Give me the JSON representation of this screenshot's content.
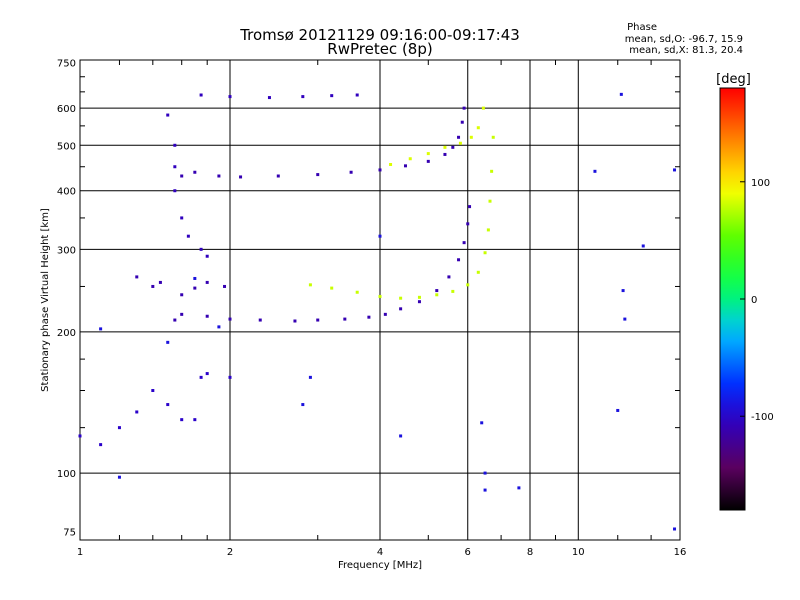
{
  "header": {
    "title": "Tromsø 20121129 09:16:00-09:17:43",
    "subtitle": "RwPretec (8p)",
    "phase_heading": "Phase",
    "phase_line1": "mean, sd,O: -96.7, 15.9",
    "phase_line2": "mean, sd,X: 81.3, 20.4"
  },
  "colorbar": {
    "label": "[deg]",
    "ticks": [
      "100",
      "0",
      "-100"
    ],
    "tick_values": [
      100,
      0,
      -100
    ],
    "range": [
      -180,
      180
    ]
  },
  "chart_data": {
    "type": "scatter",
    "title": "Tromsø 20121129 09:16:00-09:17:43",
    "subtitle": "RwPretec (8p)",
    "xlabel": "Frequency [MHz]",
    "ylabel": "Stationary phase Virtual Height [km]",
    "xscale": "log",
    "yscale": "log",
    "xlim": [
      1,
      16
    ],
    "ylim": [
      72,
      760
    ],
    "xticks": [
      1,
      2,
      4,
      6,
      8,
      10,
      16
    ],
    "xtick_labels": [
      "1",
      "2",
      "4",
      "6",
      "8",
      "10",
      "16"
    ],
    "yticks": [
      75,
      100,
      200,
      300,
      400,
      500,
      600,
      750
    ],
    "ytick_labels": [
      "75",
      "100",
      "200",
      "300",
      "400",
      "500",
      "600",
      "750"
    ],
    "grid": true,
    "color_variable": "phase [deg]",
    "series": [
      {
        "points": [
          [
            1.55,
            212
          ],
          [
            1.6,
            218
          ],
          [
            1.8,
            216
          ],
          [
            2.0,
            213
          ],
          [
            2.3,
            212
          ],
          [
            2.7,
            211
          ],
          [
            3.0,
            212
          ],
          [
            3.4,
            213
          ],
          [
            3.8,
            215
          ],
          [
            4.1,
            218
          ],
          [
            4.4,
            224
          ],
          [
            4.8,
            232
          ],
          [
            5.2,
            245
          ],
          [
            5.5,
            262
          ],
          [
            5.75,
            285
          ],
          [
            5.9,
            310
          ],
          [
            6.0,
            340
          ],
          [
            6.05,
            370
          ]
        ],
        "phase": -110
      },
      {
        "points": [
          [
            2.9,
            252
          ],
          [
            3.2,
            248
          ],
          [
            3.6,
            243
          ],
          [
            4.0,
            238
          ],
          [
            4.4,
            236
          ],
          [
            4.8,
            237
          ],
          [
            5.2,
            240
          ],
          [
            5.6,
            244
          ],
          [
            6.0,
            252
          ],
          [
            6.3,
            268
          ],
          [
            6.5,
            295
          ],
          [
            6.6,
            330
          ],
          [
            6.65,
            380
          ],
          [
            6.7,
            440
          ],
          [
            6.75,
            520
          ]
        ],
        "phase": 80
      },
      {
        "points": [
          [
            1.6,
            430
          ],
          [
            1.7,
            438
          ],
          [
            1.9,
            430
          ],
          [
            2.1,
            428
          ],
          [
            2.5,
            430
          ],
          [
            3.0,
            433
          ],
          [
            3.5,
            438
          ],
          [
            4.0,
            443
          ],
          [
            4.5,
            452
          ],
          [
            5.0,
            462
          ],
          [
            5.4,
            478
          ],
          [
            5.6,
            495
          ],
          [
            5.75,
            520
          ],
          [
            5.85,
            560
          ],
          [
            5.9,
            600
          ]
        ],
        "phase": -110
      },
      {
        "points": [
          [
            4.2,
            455
          ],
          [
            4.6,
            468
          ],
          [
            5.0,
            480
          ],
          [
            5.4,
            495
          ],
          [
            5.8,
            505
          ],
          [
            6.1,
            520
          ],
          [
            6.3,
            545
          ],
          [
            6.45,
            600
          ]
        ],
        "phase": 85
      },
      {
        "points": [
          [
            1.75,
            640
          ],
          [
            2.0,
            635
          ],
          [
            2.4,
            632
          ],
          [
            2.8,
            635
          ],
          [
            3.2,
            638
          ],
          [
            3.6,
            640
          ]
        ],
        "phase": -105
      },
      {
        "points": [
          [
            1.5,
            580
          ],
          [
            1.55,
            500
          ],
          [
            1.55,
            450
          ],
          [
            1.55,
            400
          ],
          [
            1.6,
            350
          ],
          [
            1.65,
            320
          ],
          [
            1.75,
            300
          ],
          [
            1.8,
            290
          ]
        ],
        "phase": -105
      },
      {
        "points": [
          [
            1.0,
            120
          ],
          [
            1.1,
            115
          ],
          [
            1.2,
            125
          ],
          [
            1.3,
            135
          ],
          [
            1.4,
            150
          ],
          [
            1.5,
            140
          ],
          [
            1.6,
            130
          ],
          [
            1.7,
            130
          ],
          [
            1.75,
            160
          ],
          [
            1.8,
            163
          ],
          [
            2.0,
            160
          ]
        ],
        "phase": -100
      },
      {
        "points": [
          [
            1.3,
            262
          ],
          [
            1.4,
            250
          ],
          [
            1.45,
            255
          ],
          [
            1.6,
            240
          ],
          [
            1.7,
            248
          ],
          [
            1.8,
            255
          ],
          [
            1.95,
            250
          ]
        ],
        "phase": -110
      },
      {
        "points": [
          [
            4.0,
            320
          ],
          [
            2.9,
            160
          ],
          [
            2.8,
            140
          ],
          [
            4.4,
            120
          ],
          [
            6.4,
            128
          ],
          [
            6.5,
            100
          ],
          [
            6.5,
            92
          ],
          [
            7.6,
            93
          ],
          [
            10.8,
            440
          ],
          [
            12.2,
            642
          ],
          [
            12.3,
            245
          ],
          [
            12.4,
            213
          ],
          [
            12.0,
            136
          ],
          [
            13.5,
            305
          ],
          [
            15.6,
            443
          ],
          [
            15.6,
            76
          ],
          [
            1.1,
            203
          ],
          [
            1.7,
            260
          ],
          [
            1.5,
            190
          ],
          [
            1.9,
            205
          ],
          [
            1.2,
            98
          ]
        ],
        "phase": -90
      }
    ]
  }
}
